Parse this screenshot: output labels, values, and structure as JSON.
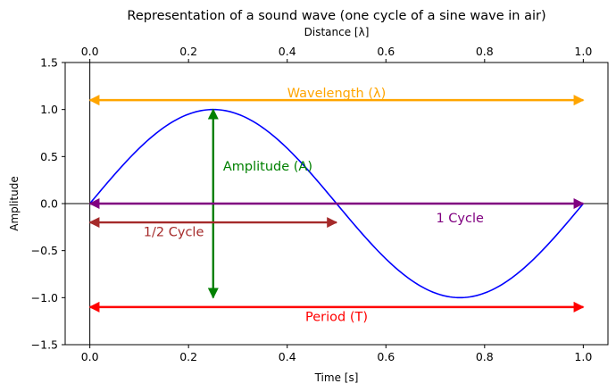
{
  "chart_data": {
    "type": "line",
    "title": "Representation of a sound wave (one cycle of a sine wave in air)",
    "xlabel": "Time [s]",
    "ylabel": "Amplitude",
    "x2label": "Distance [λ]",
    "xlim": [
      -0.05,
      1.05
    ],
    "ylim": [
      -1.5,
      1.5
    ],
    "x_ticks": [
      0.0,
      0.2,
      0.4,
      0.6,
      0.8,
      1.0
    ],
    "x_tick_labels": [
      "0.0",
      "0.2",
      "0.4",
      "0.6",
      "0.8",
      "1.0"
    ],
    "y_ticks": [
      -1.5,
      -1.0,
      -0.5,
      0.0,
      0.5,
      1.0,
      1.5
    ],
    "y_tick_labels": [
      "−1.5",
      "−1.0",
      "−0.5",
      "0.0",
      "0.5",
      "1.0",
      "1.5"
    ],
    "grid": false,
    "series": [
      {
        "function": "sin(2πx)",
        "x_range": [
          0,
          1
        ],
        "color": "#0000ff"
      }
    ],
    "reference_lines": [
      {
        "orientation": "horizontal",
        "value": 0,
        "color": "#000000"
      },
      {
        "orientation": "vertical",
        "value": 0,
        "color": "#000000"
      }
    ],
    "annotations": [
      {
        "text": "Wavelength (λ)",
        "color": "#ffa500",
        "from": [
          0,
          1.1
        ],
        "to": [
          1,
          1.1
        ],
        "label_at": [
          0.5,
          1.1
        ]
      },
      {
        "text": "Amplitude (A)",
        "color": "#008000",
        "from": [
          0.25,
          -1
        ],
        "to": [
          0.25,
          1
        ],
        "label_at": [
          0.27,
          0.4
        ]
      },
      {
        "text": "1 Cycle",
        "color": "#800080",
        "from": [
          0,
          0
        ],
        "to": [
          1,
          0
        ],
        "label_at": [
          0.75,
          -0.15
        ]
      },
      {
        "text": "1/2 Cycle",
        "color": "#a52a2a",
        "from": [
          0,
          -0.2
        ],
        "to": [
          0.5,
          -0.2
        ],
        "label_at": [
          0.17,
          -0.3
        ]
      },
      {
        "text": "Period (T)",
        "color": "#ff0000",
        "from": [
          0,
          -1.1
        ],
        "to": [
          1,
          -1.1
        ],
        "label_at": [
          0.5,
          -1.2
        ]
      }
    ]
  }
}
